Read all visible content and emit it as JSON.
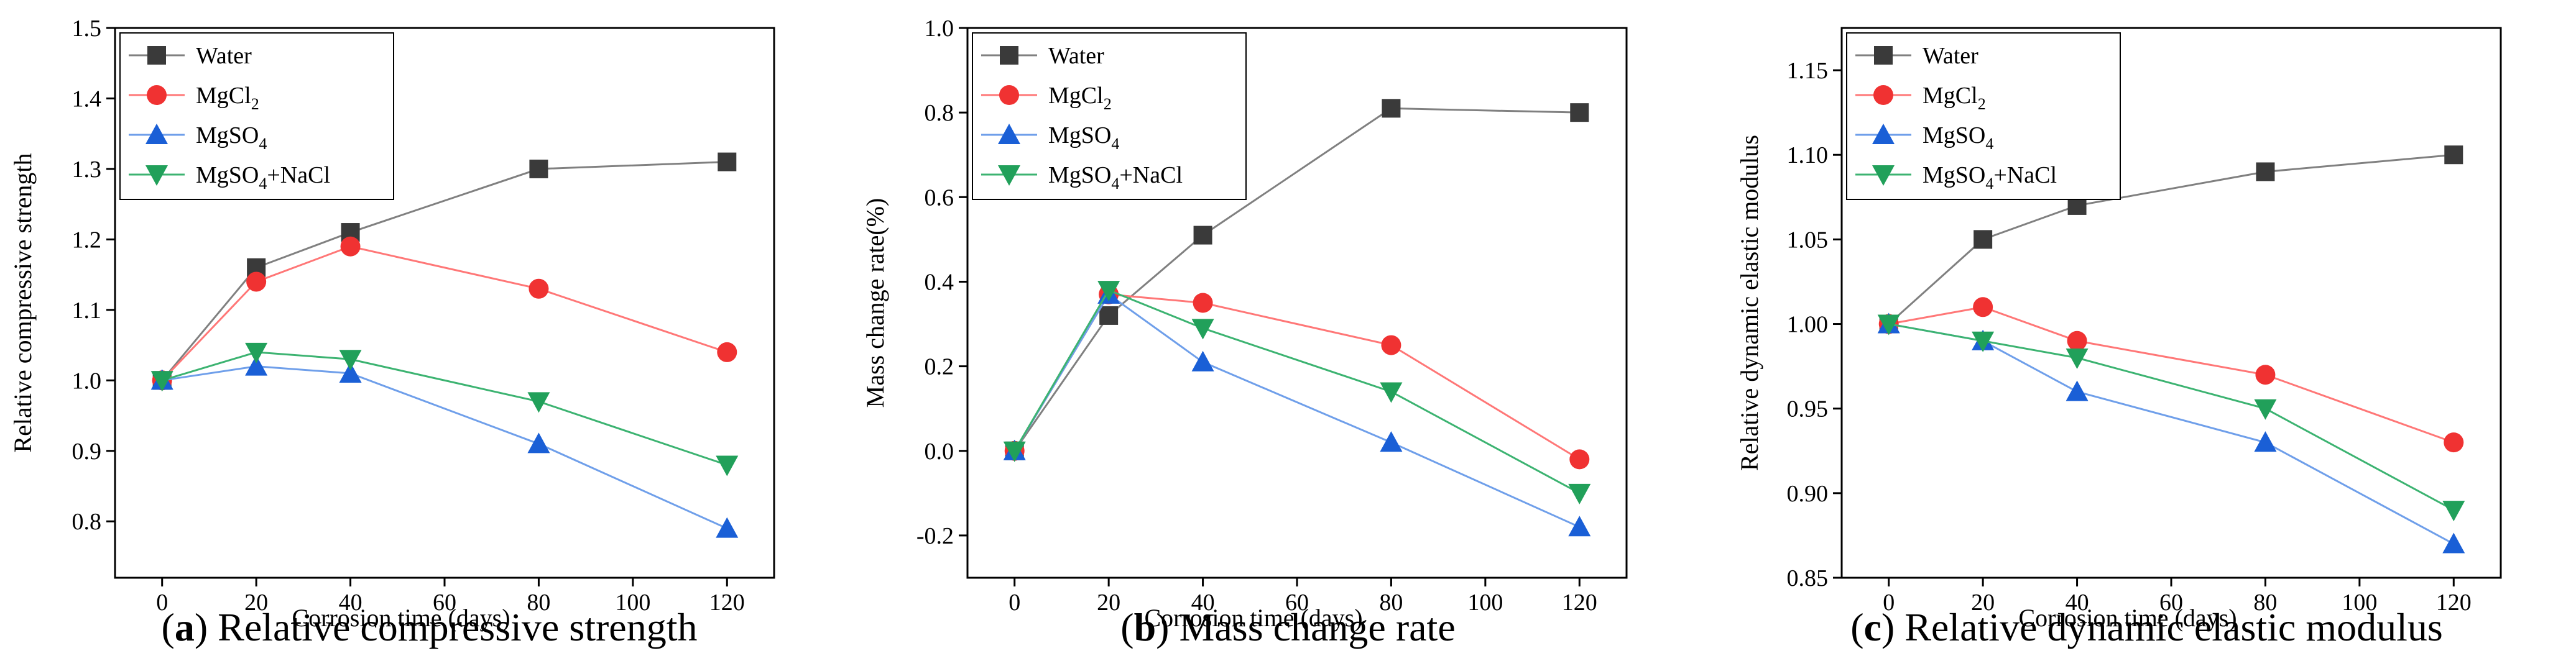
{
  "series_styles": [
    {
      "name": "Water",
      "color": "#808080",
      "marker_color": "#3a3a3a",
      "marker": "square"
    },
    {
      "name": "MgCl2",
      "color": "#ff7777",
      "marker_color": "#f03232",
      "marker": "circle"
    },
    {
      "name": "MgSO4",
      "color": "#6f9fea",
      "marker_color": "#1a5fd6",
      "marker": "triangle-up"
    },
    {
      "name": "MgSO4+NaCl",
      "color": "#3cb371",
      "marker_color": "#21a05a",
      "marker": "triangle-down"
    }
  ],
  "legend_labels": [
    {
      "base": "Water",
      "sub": "",
      "tail": ""
    },
    {
      "base": "MgCl",
      "sub": "2",
      "tail": ""
    },
    {
      "base": "MgSO",
      "sub": "4",
      "tail": ""
    },
    {
      "base": "MgSO",
      "sub": "4",
      "tail": "+NaCl"
    }
  ],
  "chart_data": [
    {
      "type": "line",
      "title": "",
      "xlabel": "Corrosion time (days)",
      "ylabel": "Relative compressive strength",
      "x": [
        0,
        20,
        40,
        80,
        120
      ],
      "xlim": [
        -10,
        130
      ],
      "xticks": [
        0,
        20,
        40,
        60,
        80,
        100,
        120
      ],
      "ylim": [
        0.72,
        1.5
      ],
      "yticks": [
        0.8,
        0.9,
        1.0,
        1.1,
        1.2,
        1.3,
        1.4,
        1.5
      ],
      "ytick_labels": [
        "0.8",
        "0.9",
        "1.0",
        "1.1",
        "1.2",
        "1.3",
        "1.4",
        "1.5"
      ],
      "legend_position": "top-left",
      "series": [
        {
          "name": "Water",
          "values": [
            1.0,
            1.16,
            1.21,
            1.3,
            1.31
          ]
        },
        {
          "name": "MgCl2",
          "values": [
            1.0,
            1.14,
            1.19,
            1.13,
            1.04
          ]
        },
        {
          "name": "MgSO4",
          "values": [
            1.0,
            1.02,
            1.01,
            0.91,
            0.79
          ]
        },
        {
          "name": "MgSO4+NaCl",
          "values": [
            1.0,
            1.04,
            1.03,
            0.97,
            0.88
          ]
        }
      ],
      "caption_letter": "a",
      "caption_text": "Relative compressive strength"
    },
    {
      "type": "line",
      "title": "",
      "xlabel": "Corrosion time (days)",
      "ylabel": "Mass change rate(%)",
      "x": [
        0,
        20,
        40,
        80,
        120
      ],
      "xlim": [
        -10,
        130
      ],
      "xticks": [
        0,
        20,
        40,
        60,
        80,
        100,
        120
      ],
      "ylim": [
        -0.3,
        1.0
      ],
      "yticks": [
        -0.2,
        0.0,
        0.2,
        0.4,
        0.6,
        0.8,
        1.0
      ],
      "ytick_labels": [
        "-0.2",
        "0.0",
        "0.2",
        "0.4",
        "0.6",
        "0.8",
        "1.0"
      ],
      "legend_position": "top-left",
      "series": [
        {
          "name": "Water",
          "values": [
            0.0,
            0.32,
            0.51,
            0.81,
            0.8
          ]
        },
        {
          "name": "MgCl2",
          "values": [
            0.0,
            0.37,
            0.35,
            0.25,
            -0.02
          ]
        },
        {
          "name": "MgSO4",
          "values": [
            0.0,
            0.37,
            0.21,
            0.02,
            -0.18
          ]
        },
        {
          "name": "MgSO4+NaCl",
          "values": [
            0.0,
            0.38,
            0.29,
            0.14,
            -0.1
          ]
        }
      ],
      "caption_letter": "b",
      "caption_text": "Mass change rate"
    },
    {
      "type": "line",
      "title": "",
      "xlabel": "Corrosion time (days)",
      "ylabel": "Relative dynamic elastic modulus",
      "x": [
        0,
        20,
        40,
        80,
        120
      ],
      "xlim": [
        -10,
        130
      ],
      "xticks": [
        0,
        20,
        40,
        60,
        80,
        100,
        120
      ],
      "ylim": [
        0.85,
        1.175
      ],
      "yticks": [
        0.85,
        0.9,
        0.95,
        1.0,
        1.05,
        1.1,
        1.15
      ],
      "ytick_labels": [
        "0.85",
        "0.90",
        "0.95",
        "1.00",
        "1.05",
        "1.10",
        "1.15"
      ],
      "legend_position": "top-left",
      "series": [
        {
          "name": "Water",
          "values": [
            1.0,
            1.05,
            1.07,
            1.09,
            1.1
          ]
        },
        {
          "name": "MgCl2",
          "values": [
            1.0,
            1.01,
            0.99,
            0.97,
            0.93
          ]
        },
        {
          "name": "MgSO4",
          "values": [
            1.0,
            0.99,
            0.96,
            0.93,
            0.87
          ]
        },
        {
          "name": "MgSO4+NaCl",
          "values": [
            1.0,
            0.99,
            0.98,
            0.95,
            0.89
          ]
        }
      ],
      "caption_letter": "c",
      "caption_text": "Relative dynamic elastic modulus"
    }
  ]
}
